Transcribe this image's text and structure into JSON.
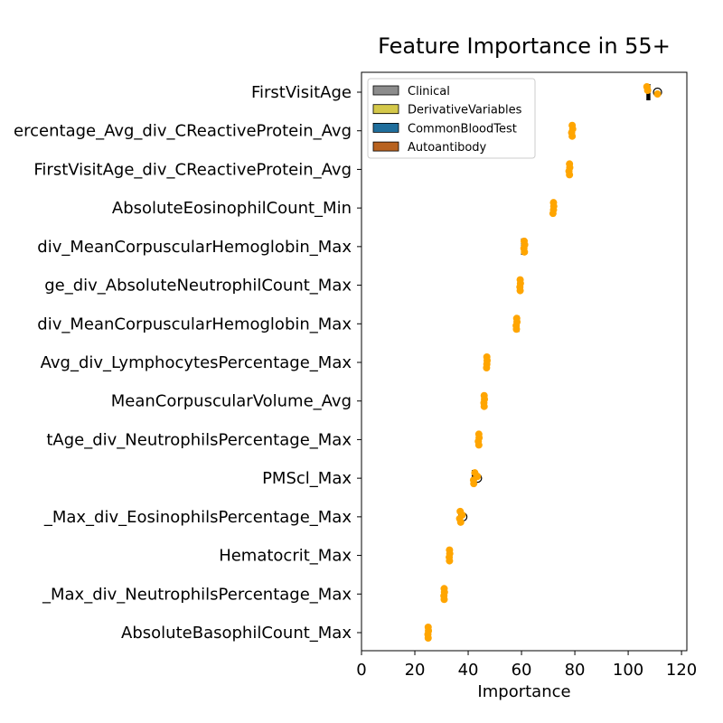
{
  "chart_data": {
    "type": "box-strip",
    "title": "Feature Importance in 55+",
    "xlabel": "Importance",
    "ylabel": "",
    "xlim": [
      0,
      122
    ],
    "xticks": [
      0,
      20,
      40,
      60,
      80,
      100,
      120
    ],
    "xtick_labels": [
      "0",
      "20",
      "40",
      "60",
      "80",
      "100",
      "120"
    ],
    "grid": false,
    "legend": {
      "placement": "top-left",
      "items": [
        {
          "label": "Clinical",
          "color": "#8c8c8c"
        },
        {
          "label": "DerivativeVariables",
          "color": "#d4c84a"
        },
        {
          "label": "CommonBloodTest",
          "color": "#1f6e9c"
        },
        {
          "label": "Autoantibody",
          "color": "#b8621f"
        }
      ]
    },
    "colors": {
      "points": "#ffa500",
      "box": "#000000"
    },
    "categories": [
      "FirstVisitAge",
      "ercentage_Avg_div_CReactiveProtein_Avg",
      "FirstVisitAge_div_CReactiveProtein_Avg",
      "AbsoluteEosinophilCount_Min",
      "div_MeanCorpuscularHemoglobin_Max",
      "ge_div_AbsoluteNeutrophilCount_Max",
      "div_MeanCorpuscularHemoglobin_Max",
      "Avg_div_LymphocytesPercentage_Max",
      "MeanCorpuscularVolume_Avg",
      "tAge_div_NeutrophilsPercentage_Max",
      "PMScl_Max",
      "_Max_div_EosinophilsPercentage_Max",
      "Hematocrit_Max",
      "_Max_div_NeutrophilsPercentage_Max",
      "AbsoluteBasophilCount_Max"
    ],
    "series": [
      {
        "box": [
          107,
          108.5
        ],
        "points": [
          107,
          107.3,
          111
        ],
        "outliers": [
          111
        ]
      },
      {
        "box": [
          78.5,
          79.3
        ],
        "points": [
          79,
          79.2,
          78.8,
          79
        ]
      },
      {
        "box": [
          77.5,
          78.5
        ],
        "points": [
          78,
          78.1,
          77.8,
          78
        ]
      },
      {
        "box": [
          71.5,
          72.3
        ],
        "points": [
          72,
          72.1,
          72,
          71.8
        ]
      },
      {
        "box": [
          60,
          61
        ],
        "points": [
          61,
          61.2,
          60.9,
          61.1
        ]
      },
      {
        "box": [
          59,
          60
        ],
        "points": [
          59.5,
          59.6,
          59.4,
          59.5
        ]
      },
      {
        "box": [
          58,
          58.5
        ],
        "points": [
          58.2,
          58.3,
          58,
          58.1
        ]
      },
      {
        "box": [
          46.5,
          47.5
        ],
        "points": [
          47,
          47.1,
          47,
          46.9
        ]
      },
      {
        "box": [
          45.5,
          46.5
        ],
        "points": [
          46,
          46.1,
          45.9,
          46
        ]
      },
      {
        "box": [
          43.5,
          44.3
        ],
        "points": [
          44,
          44.1,
          43.8,
          44
        ]
      },
      {
        "box": [
          41.5,
          43
        ],
        "points": [
          42.5,
          43.5,
          42,
          42.1
        ],
        "outliers": [
          43.5
        ]
      },
      {
        "box": [
          36.5,
          37.5
        ],
        "points": [
          37,
          37.8,
          36.8,
          37.2
        ],
        "outliers": [
          38
        ]
      },
      {
        "box": [
          32.5,
          33.3
        ],
        "points": [
          33,
          33.1,
          32.9,
          33
        ]
      },
      {
        "box": [
          30.5,
          31.3
        ],
        "points": [
          31,
          31.1,
          30.9,
          31
        ]
      },
      {
        "box": [
          24.5,
          25.3
        ],
        "points": [
          25,
          25.1,
          24.9,
          25
        ]
      }
    ]
  }
}
